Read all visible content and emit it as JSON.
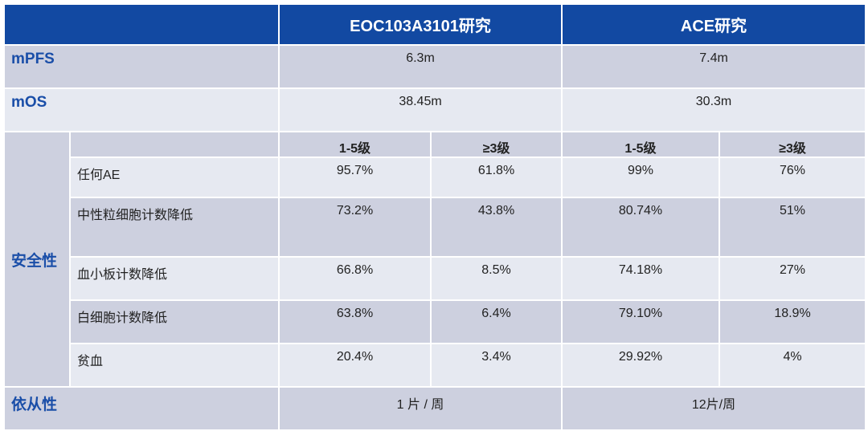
{
  "header": {
    "col1": "EOC103A3101研究",
    "col2": "ACE研究"
  },
  "mpfs": {
    "label": "mPFS",
    "eoc": "6.3m",
    "ace": "7.4m"
  },
  "mos": {
    "label": "mOS",
    "eoc": "38.45m",
    "ace": "30.3m"
  },
  "safety": {
    "label": "安全性",
    "subheaders": [
      "1-5级",
      "≥3级",
      "1-5级",
      "≥3级"
    ],
    "rows": [
      {
        "name": "任何AE",
        "values": [
          "95.7%",
          "61.8%",
          "99%",
          "76%"
        ]
      },
      {
        "name": "中性粒细胞计数降低",
        "values": [
          "73.2%",
          "43.8%",
          "80.74%",
          "51%"
        ]
      },
      {
        "name": "血小板计数降低",
        "values": [
          "66.8%",
          "8.5%",
          "74.18%",
          "27%"
        ]
      },
      {
        "name": "白细胞计数降低",
        "values": [
          "63.8%",
          "6.4%",
          "79.10%",
          "18.9%"
        ]
      },
      {
        "name": "贫血",
        "values": [
          "20.4%",
          "3.4%",
          "29.92%",
          "4%"
        ]
      }
    ]
  },
  "compliance": {
    "label": "依从性",
    "eoc": "1 片 / 周",
    "ace": "12片/周"
  },
  "colors": {
    "header": "#1249a2",
    "row_dark": "#cdd0df",
    "row_light": "#e6e9f1",
    "label": "#1a4ea8"
  }
}
